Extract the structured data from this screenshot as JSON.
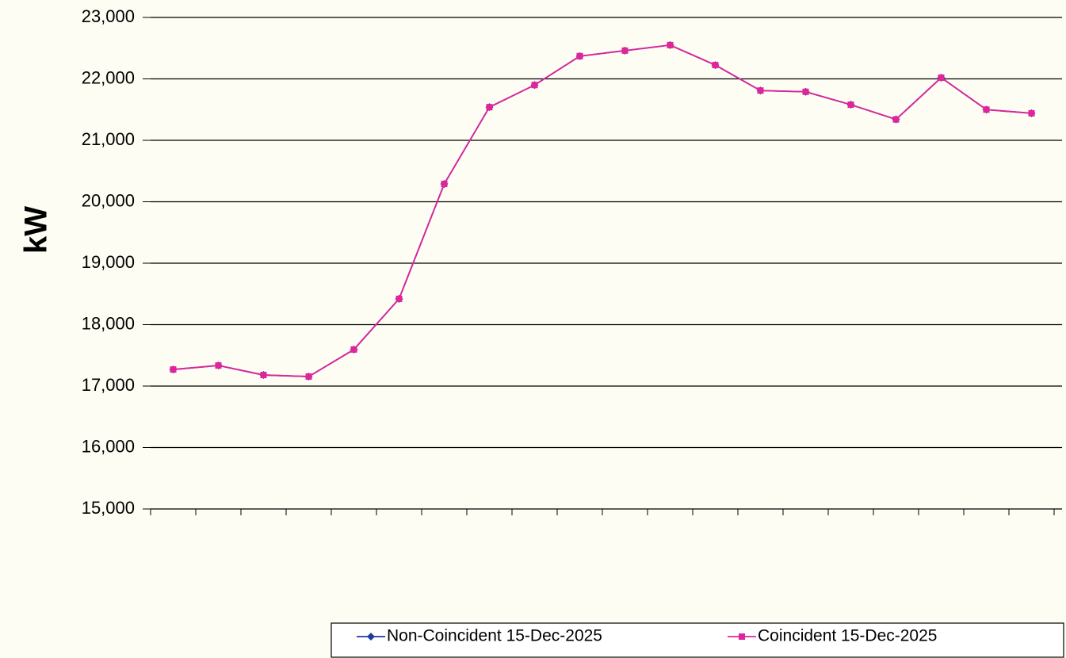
{
  "chart_data": {
    "type": "line",
    "y_label": "kW",
    "categories": [
      null,
      null,
      null,
      null,
      null,
      null,
      null,
      null,
      null,
      null,
      null,
      null,
      null,
      null,
      null,
      null,
      null,
      null,
      null,
      null
    ],
    "series": [
      {
        "name": "Non-Coincident 15-Dec-2025",
        "color": "#1f3aa0",
        "marker": "diamond",
        "values": [
          17270,
          17335,
          17180,
          17155,
          17595,
          18420,
          20290,
          21540,
          21900,
          22370,
          22460,
          22550,
          22225,
          21810,
          21790,
          21580,
          21340,
          22020,
          21500,
          21440
        ]
      },
      {
        "name": "Coincident 15-Dec-2025",
        "color": "#e0249a",
        "marker": "square",
        "values": [
          17270,
          17335,
          17180,
          17155,
          17595,
          18420,
          20290,
          21540,
          21900,
          22370,
          22460,
          22550,
          22225,
          21810,
          21790,
          21580,
          21340,
          22020,
          21500,
          21440
        ]
      }
    ],
    "ylim": [
      15000,
      23000
    ],
    "yticks": [
      {
        "value": 15000,
        "label": "15,000"
      },
      {
        "value": 16000,
        "label": "16,000"
      },
      {
        "value": 17000,
        "label": "17,000"
      },
      {
        "value": 18000,
        "label": "18,000"
      },
      {
        "value": 19000,
        "label": "19,000"
      },
      {
        "value": 20000,
        "label": "20,000"
      },
      {
        "value": 21000,
        "label": "21,000"
      },
      {
        "value": 22000,
        "label": "22,000"
      },
      {
        "value": 23000,
        "label": "23,000"
      }
    ],
    "grid": true,
    "legend": "bottom"
  }
}
